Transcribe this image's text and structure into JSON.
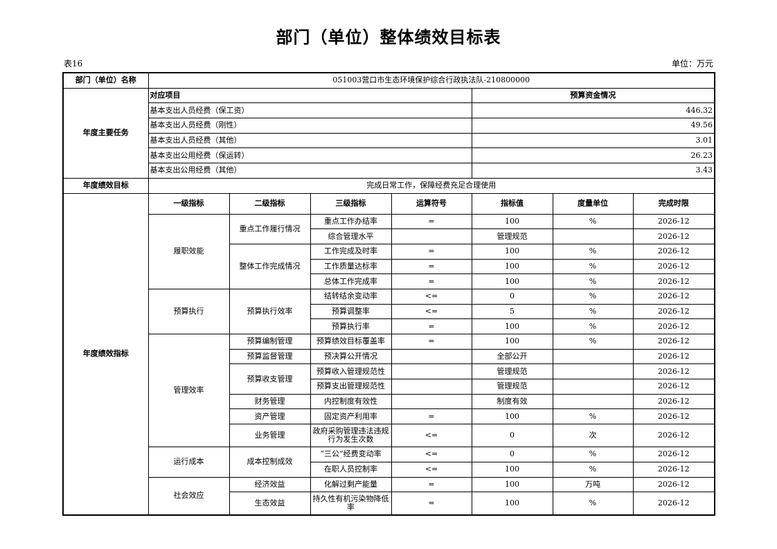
{
  "title": "部门（单位）整体绩效目标表",
  "table_no": "表16",
  "unit_label": "单位：万元",
  "dept_name_label": "部门（单位）名称",
  "dept_name": "051003营口市生态环境保护综合行政执法队-210800000",
  "tasks": {
    "label": "年度主要任务",
    "col_item": "对应项目",
    "col_budget": "预算资金情况",
    "rows": [
      {
        "item": "基本支出人员经费（保工资）",
        "amount": "446.32"
      },
      {
        "item": "基本支出人员经费（刚性）",
        "amount": "49.56"
      },
      {
        "item": "基本支出人员经费（其他）",
        "amount": "3.01"
      },
      {
        "item": "基本支出公用经费（保运转）",
        "amount": "26.23"
      },
      {
        "item": "基本支出公用经费（其他）",
        "amount": "3.43"
      }
    ]
  },
  "goal": {
    "label": "年度绩效目标",
    "text": "完成日常工作，保障经费充足合理使用"
  },
  "indicators": {
    "label": "年度绩效指标",
    "headers": [
      "一级指标",
      "二级指标",
      "三级指标",
      "运算符号",
      "指标值",
      "度量单位",
      "完成时限"
    ],
    "groups": [
      {
        "name": "履职效能",
        "subs": [
          {
            "name": "重点工作履行情况",
            "items": [
              {
                "name": "重点工作办结率",
                "op": "=",
                "value": "100",
                "unit": "%",
                "deadline": "2026-12"
              },
              {
                "name": "综合管理水平",
                "op": "",
                "value": "管理规范",
                "unit": "",
                "deadline": "2026-12"
              }
            ]
          },
          {
            "name": "整体工作完成情况",
            "items": [
              {
                "name": "工作完成及时率",
                "op": "=",
                "value": "100",
                "unit": "%",
                "deadline": "2026-12"
              },
              {
                "name": "工作质量达标率",
                "op": "=",
                "value": "100",
                "unit": "%",
                "deadline": "2026-12"
              },
              {
                "name": "总体工作完成率",
                "op": "=",
                "value": "100",
                "unit": "%",
                "deadline": "2026-12"
              }
            ]
          }
        ]
      },
      {
        "name": "预算执行",
        "subs": [
          {
            "name": "预算执行效率",
            "items": [
              {
                "name": "结转结余变动率",
                "op": "<=",
                "value": "0",
                "unit": "%",
                "deadline": "2026-12"
              },
              {
                "name": "预算调整率",
                "op": "<=",
                "value": "5",
                "unit": "%",
                "deadline": "2026-12"
              },
              {
                "name": "预算执行率",
                "op": "=",
                "value": "100",
                "unit": "%",
                "deadline": "2026-12"
              }
            ]
          }
        ]
      },
      {
        "name": "管理效率",
        "subs": [
          {
            "name": "预算编制管理",
            "items": [
              {
                "name": "预算绩效目标覆盖率",
                "op": "=",
                "value": "100",
                "unit": "%",
                "deadline": "2026-12"
              }
            ]
          },
          {
            "name": "预算监督管理",
            "items": [
              {
                "name": "预决算公开情况",
                "op": "",
                "value": "全部公开",
                "unit": "",
                "deadline": "2026-12"
              }
            ]
          },
          {
            "name": "预算收支管理",
            "items": [
              {
                "name": "预算收入管理规范性",
                "op": "",
                "value": "管理规范",
                "unit": "",
                "deadline": "2026-12"
              },
              {
                "name": "预算支出管理规范性",
                "op": "",
                "value": "管理规范",
                "unit": "",
                "deadline": "2026-12"
              }
            ]
          },
          {
            "name": "财务管理",
            "items": [
              {
                "name": "内控制度有效性",
                "op": "",
                "value": "制度有效",
                "unit": "",
                "deadline": "2026-12"
              }
            ]
          },
          {
            "name": "资产管理",
            "items": [
              {
                "name": "固定资产利用率",
                "op": "=",
                "value": "100",
                "unit": "%",
                "deadline": "2026-12"
              }
            ]
          },
          {
            "name": "业务管理",
            "items": [
              {
                "name": "政府采购管理违法违规行为发生次数",
                "op": "<=",
                "value": "0",
                "unit": "次",
                "deadline": "2026-12"
              }
            ]
          }
        ]
      },
      {
        "name": "运行成本",
        "subs": [
          {
            "name": "成本控制成效",
            "items": [
              {
                "name": "“三公”经费变动率",
                "op": "<=",
                "value": "0",
                "unit": "%",
                "deadline": "2026-12"
              },
              {
                "name": "在职人员控制率",
                "op": "<=",
                "value": "100",
                "unit": "%",
                "deadline": "2026-12"
              }
            ]
          }
        ]
      },
      {
        "name": "社会效应",
        "subs": [
          {
            "name": "经济效益",
            "items": [
              {
                "name": "化解过剩产能量",
                "op": "=",
                "value": "100",
                "unit": "万吨",
                "deadline": "2026-12"
              }
            ]
          },
          {
            "name": "生态效益",
            "items": [
              {
                "name": "持久性有机污染物降低率",
                "op": "=",
                "value": "100",
                "unit": "%",
                "deadline": "2026-12"
              }
            ]
          }
        ]
      }
    ]
  }
}
